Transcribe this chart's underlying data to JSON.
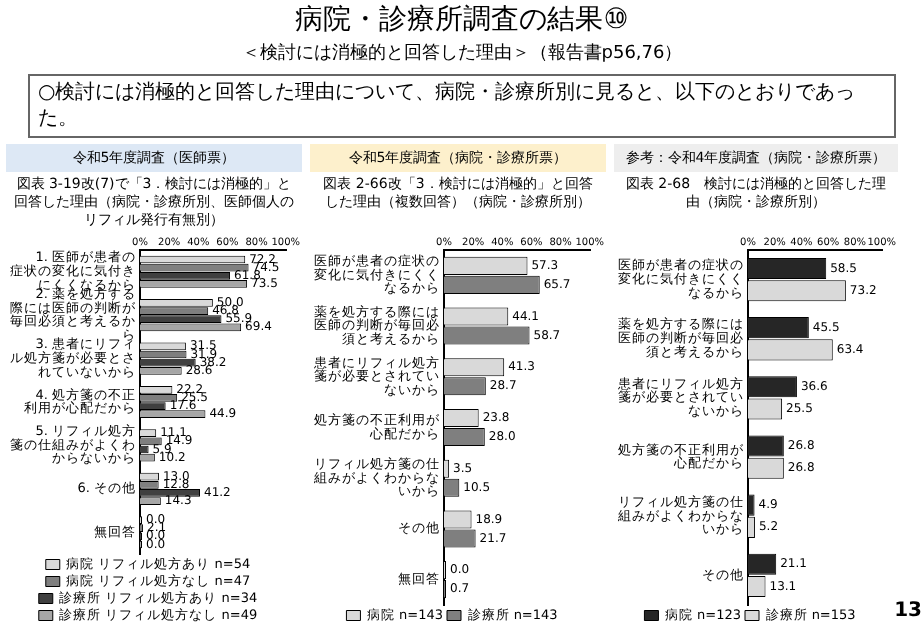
{
  "chart_data": [
    {
      "type": "other",
      "title": "病院・診療所調査の結果⑩",
      "subtitle": "＜検討には消極的と回答した理由＞（報告書p56,76）",
      "annotations": [
        "○検討には消極的と回答した理由について、病院・診療所別に見ると、以下のとおりであった。",
        "13"
      ]
    },
    {
      "type": "bar",
      "orientation": "horizontal",
      "title": "令和5年度調査（医師票）",
      "subtitle": "図表 3-19改(7)で「3．検討には消極的」と回答した理由（病院・診療所別、医師個人のリフィル発行有無別）",
      "categories": [
        "1. 医師が患者の症状の変化に気付きにくくなるから",
        "2. 薬を処方する際には医師の判断が毎回必須と考えるから",
        "3. 患者にリフィル処方箋が必要とされていないから",
        "4. 処方箋の不正利用が心配だから",
        "5. リフィル処方箋の仕組みがよくわからないから",
        "6. その他",
        "無回答"
      ],
      "series": [
        {
          "name": "病院 リフィル処方あり n=54",
          "color": "#d9d9d9",
          "values": [
            72.2,
            50.0,
            31.5,
            22.2,
            11.1,
            13.0,
            0.0
          ],
          "value_labels": [
            "72.2",
            "50.0",
            "31.5",
            "22.2",
            "11.1",
            "13.0",
            "0.0"
          ]
        },
        {
          "name": "病院 リフィル処方なし n=47",
          "color": "#7f7f7f",
          "values": [
            74.5,
            46.8,
            31.9,
            25.5,
            14.9,
            12.8,
            2.1
          ],
          "value_labels": [
            "74.5",
            "46.8",
            "31.9",
            "25.5",
            "14.9",
            "12.8",
            "2.1"
          ]
        },
        {
          "name": "診療所 リフィル処方あり n=34",
          "color": "#404040",
          "values": [
            61.8,
            55.9,
            38.2,
            17.6,
            5.9,
            41.2,
            0.0
          ],
          "value_labels": [
            "61.8",
            "55.9",
            "38.2",
            "17.6",
            "5.9",
            "41.2",
            "0.0"
          ]
        },
        {
          "name": "診療所 リフィル処方なし n=49",
          "color": "#a6a6a6",
          "values": [
            73.5,
            69.4,
            28.6,
            44.9,
            10.2,
            14.3,
            0.0
          ],
          "value_labels": [
            "73.5",
            "69.4",
            "28.6",
            "44.9",
            "10.2",
            "14.3",
            "0.0"
          ]
        }
      ],
      "xlim": [
        0,
        100
      ],
      "xticks": [
        {
          "value": 0,
          "label": "0%"
        },
        {
          "value": 20,
          "label": "20%"
        },
        {
          "value": 40,
          "label": "40%"
        },
        {
          "value": 60,
          "label": "60%"
        },
        {
          "value": 80,
          "label": "80%"
        },
        {
          "value": 100,
          "label": "100%"
        }
      ],
      "legend": "bottom",
      "grid": false
    },
    {
      "type": "bar",
      "orientation": "horizontal",
      "title": "令和5年度調査（病院・診療所票）",
      "subtitle": "図表 2-66改「3．検討には消極的」と回答した理由（複数回答）（病院・診療所別）",
      "categories": [
        "医師が患者の症状の変化に気付きにくくなるから",
        "薬を処方する際には医師の判断が毎回必須と考えるから",
        "患者にリフィル処方箋が必要とされていないから",
        "処方箋の不正利用が心配だから",
        "リフィル処方箋の仕組みがよくわからないから",
        "その他",
        "無回答"
      ],
      "series": [
        {
          "name": "病院 n=143",
          "color": "#d9d9d9",
          "values": [
            57.3,
            44.1,
            41.3,
            23.8,
            3.5,
            18.9,
            0.0
          ],
          "value_labels": [
            "57.3",
            "44.1",
            "41.3",
            "23.8",
            "3.5",
            "18.9",
            "0.0"
          ]
        },
        {
          "name": "診療所 n=143",
          "color": "#7f7f7f",
          "values": [
            65.7,
            58.7,
            28.7,
            28.0,
            10.5,
            21.7,
            0.7
          ],
          "value_labels": [
            "65.7",
            "58.7",
            "28.7",
            "28.0",
            "10.5",
            "21.7",
            "0.7"
          ]
        }
      ],
      "xlim": [
        0,
        100
      ],
      "xticks": [
        {
          "value": 0,
          "label": "0%"
        },
        {
          "value": 20,
          "label": "20%"
        },
        {
          "value": 40,
          "label": "40%"
        },
        {
          "value": 60,
          "label": "60%"
        },
        {
          "value": 80,
          "label": "80%"
        },
        {
          "value": 100,
          "label": "100%"
        }
      ],
      "legend": "bottom",
      "grid": false
    },
    {
      "type": "bar",
      "orientation": "horizontal",
      "title": "参考：令和4年度調査（病院・診療所票）",
      "subtitle": "図表 2-68　検討には消極的と回答した理由（病院・診療所別）",
      "categories": [
        "医師が患者の症状の変化に気付きにくくなるから",
        "薬を処方する際には医師の判断が毎回必須と考えるから",
        "患者にリフィル処方箋が必要とされていないから",
        "処方箋の不正利用が心配だから",
        "リフィル処方箋の仕組みがよくわからないから",
        "その他"
      ],
      "series": [
        {
          "name": "病院 n=123",
          "color": "#262626",
          "values": [
            58.5,
            45.5,
            36.6,
            26.8,
            4.9,
            21.1
          ],
          "value_labels": [
            "58.5",
            "45.5",
            "36.6",
            "26.8",
            "4.9",
            "21.1"
          ]
        },
        {
          "name": "診療所 n=153",
          "color": "#d9d9d9",
          "values": [
            73.2,
            63.4,
            25.5,
            26.8,
            5.2,
            13.1
          ],
          "value_labels": [
            "73.2",
            "63.4",
            "25.5",
            "26.8",
            "5.2",
            "13.1"
          ]
        }
      ],
      "xlim": [
        0,
        100
      ],
      "xticks": [
        {
          "value": 0,
          "label": "0%"
        },
        {
          "value": 20,
          "label": "20%"
        },
        {
          "value": 40,
          "label": "40%"
        },
        {
          "value": 60,
          "label": "60%"
        },
        {
          "value": 80,
          "label": "80%"
        },
        {
          "value": 100,
          "label": "100%"
        }
      ],
      "legend": "bottom",
      "grid": false
    }
  ]
}
